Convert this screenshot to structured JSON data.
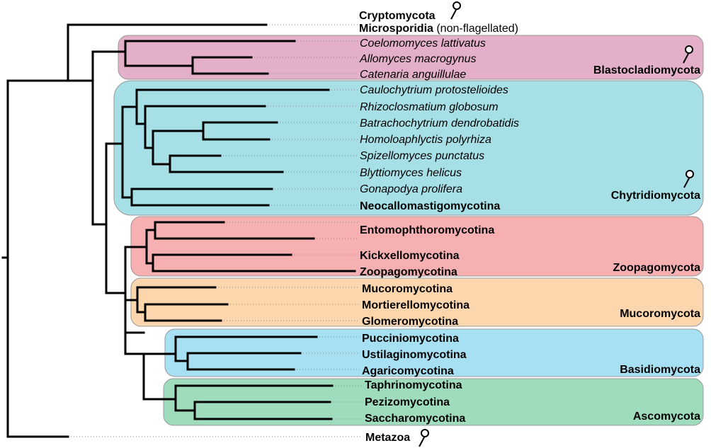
{
  "taxa": [
    {
      "id": "cryptomycota",
      "label": "Cryptomycota",
      "style": "bold"
    },
    {
      "id": "microsporidia",
      "label": "Microsporidia",
      "style": "bold",
      "suffix": " (non-flagellated)"
    },
    {
      "id": "coelomomyces",
      "label": "Coelomomyces lattivatus",
      "style": "italic"
    },
    {
      "id": "allomyces",
      "label": "Allomyces macrogynus",
      "style": "italic"
    },
    {
      "id": "catenaria",
      "label": "Catenaria anguillulae",
      "style": "italic"
    },
    {
      "id": "caulochytrium",
      "label": "Caulochytrium protostelioides",
      "style": "italic"
    },
    {
      "id": "rhizoclosmatium",
      "label": "Rhizoclosmatium globosum",
      "style": "italic"
    },
    {
      "id": "batrachochytrium",
      "label": "Batrachochytrium dendrobatidis",
      "style": "italic"
    },
    {
      "id": "homoloaphlyctis",
      "label": "Homoloaphlyctis polyrhiza",
      "style": "italic"
    },
    {
      "id": "spizellomyces",
      "label": "Spizellomyces punctatus",
      "style": "italic"
    },
    {
      "id": "blyttiomyces",
      "label": "Blyttiomyces helicus",
      "style": "italic"
    },
    {
      "id": "gonapodya",
      "label": "Gonapodya prolifera",
      "style": "italic"
    },
    {
      "id": "neocallimastigomycotina",
      "label": "Neocallomastigomycotina",
      "style": "bold"
    },
    {
      "id": "entomophthoromycotina",
      "label": "Entomophthoromycotina",
      "style": "bold"
    },
    {
      "id": "kickxellomycotina",
      "label": "Kickxellomycotina",
      "style": "bold"
    },
    {
      "id": "zoopagomycotina",
      "label": "Zoopagomycotina",
      "style": "bold"
    },
    {
      "id": "mucoromycotina",
      "label": "Mucoromycotina",
      "style": "bold"
    },
    {
      "id": "mortierellomycotina",
      "label": "Mortierellomycotina",
      "style": "bold"
    },
    {
      "id": "glomeromycotina",
      "label": "Glomeromycotina",
      "style": "bold"
    },
    {
      "id": "pucciniomycotina",
      "label": "Pucciniomycotina",
      "style": "bold"
    },
    {
      "id": "ustilaginomycotina",
      "label": "Ustilaginomycotina",
      "style": "bold"
    },
    {
      "id": "agaricomycotina",
      "label": "Agaricomycotina",
      "style": "bold"
    },
    {
      "id": "taphrinomycotina",
      "label": "Taphrinomycotina",
      "style": "bold"
    },
    {
      "id": "pezizomycotina",
      "label": "Pezizomycotina",
      "style": "bold"
    },
    {
      "id": "saccharomycotina",
      "label": "Saccharomycotina",
      "style": "bold"
    },
    {
      "id": "metazoa",
      "label": "Metazoa",
      "style": "bold"
    }
  ],
  "clades": [
    {
      "id": "blastocladiomycota",
      "label": "Blastocladiomycota",
      "color": "#e3afc9",
      "flagellated": true
    },
    {
      "id": "chytridiomycota",
      "label": "Chytridiomycota",
      "color": "#a6e0e6",
      "flagellated": true
    },
    {
      "id": "zoopagomycota",
      "label": "Zoopagomycota",
      "color": "#f6b0b2",
      "flagellated": false
    },
    {
      "id": "mucoromycota",
      "label": "Mucoromycota",
      "color": "#fdd6ad",
      "flagellated": false
    },
    {
      "id": "basidiomycota",
      "label": "Basidiomycota",
      "color": "#a7e0f2",
      "flagellated": false
    },
    {
      "id": "ascomycota",
      "label": "Ascomycota",
      "color": "#9edcbc",
      "flagellated": false
    }
  ],
  "flagellum_marks": [
    "cryptomycota",
    "blastocladiomycota",
    "chytridiomycota",
    "metazoa"
  ],
  "colors": {
    "branch": "#000000",
    "leader": "#888888",
    "box_border": "#999999"
  }
}
